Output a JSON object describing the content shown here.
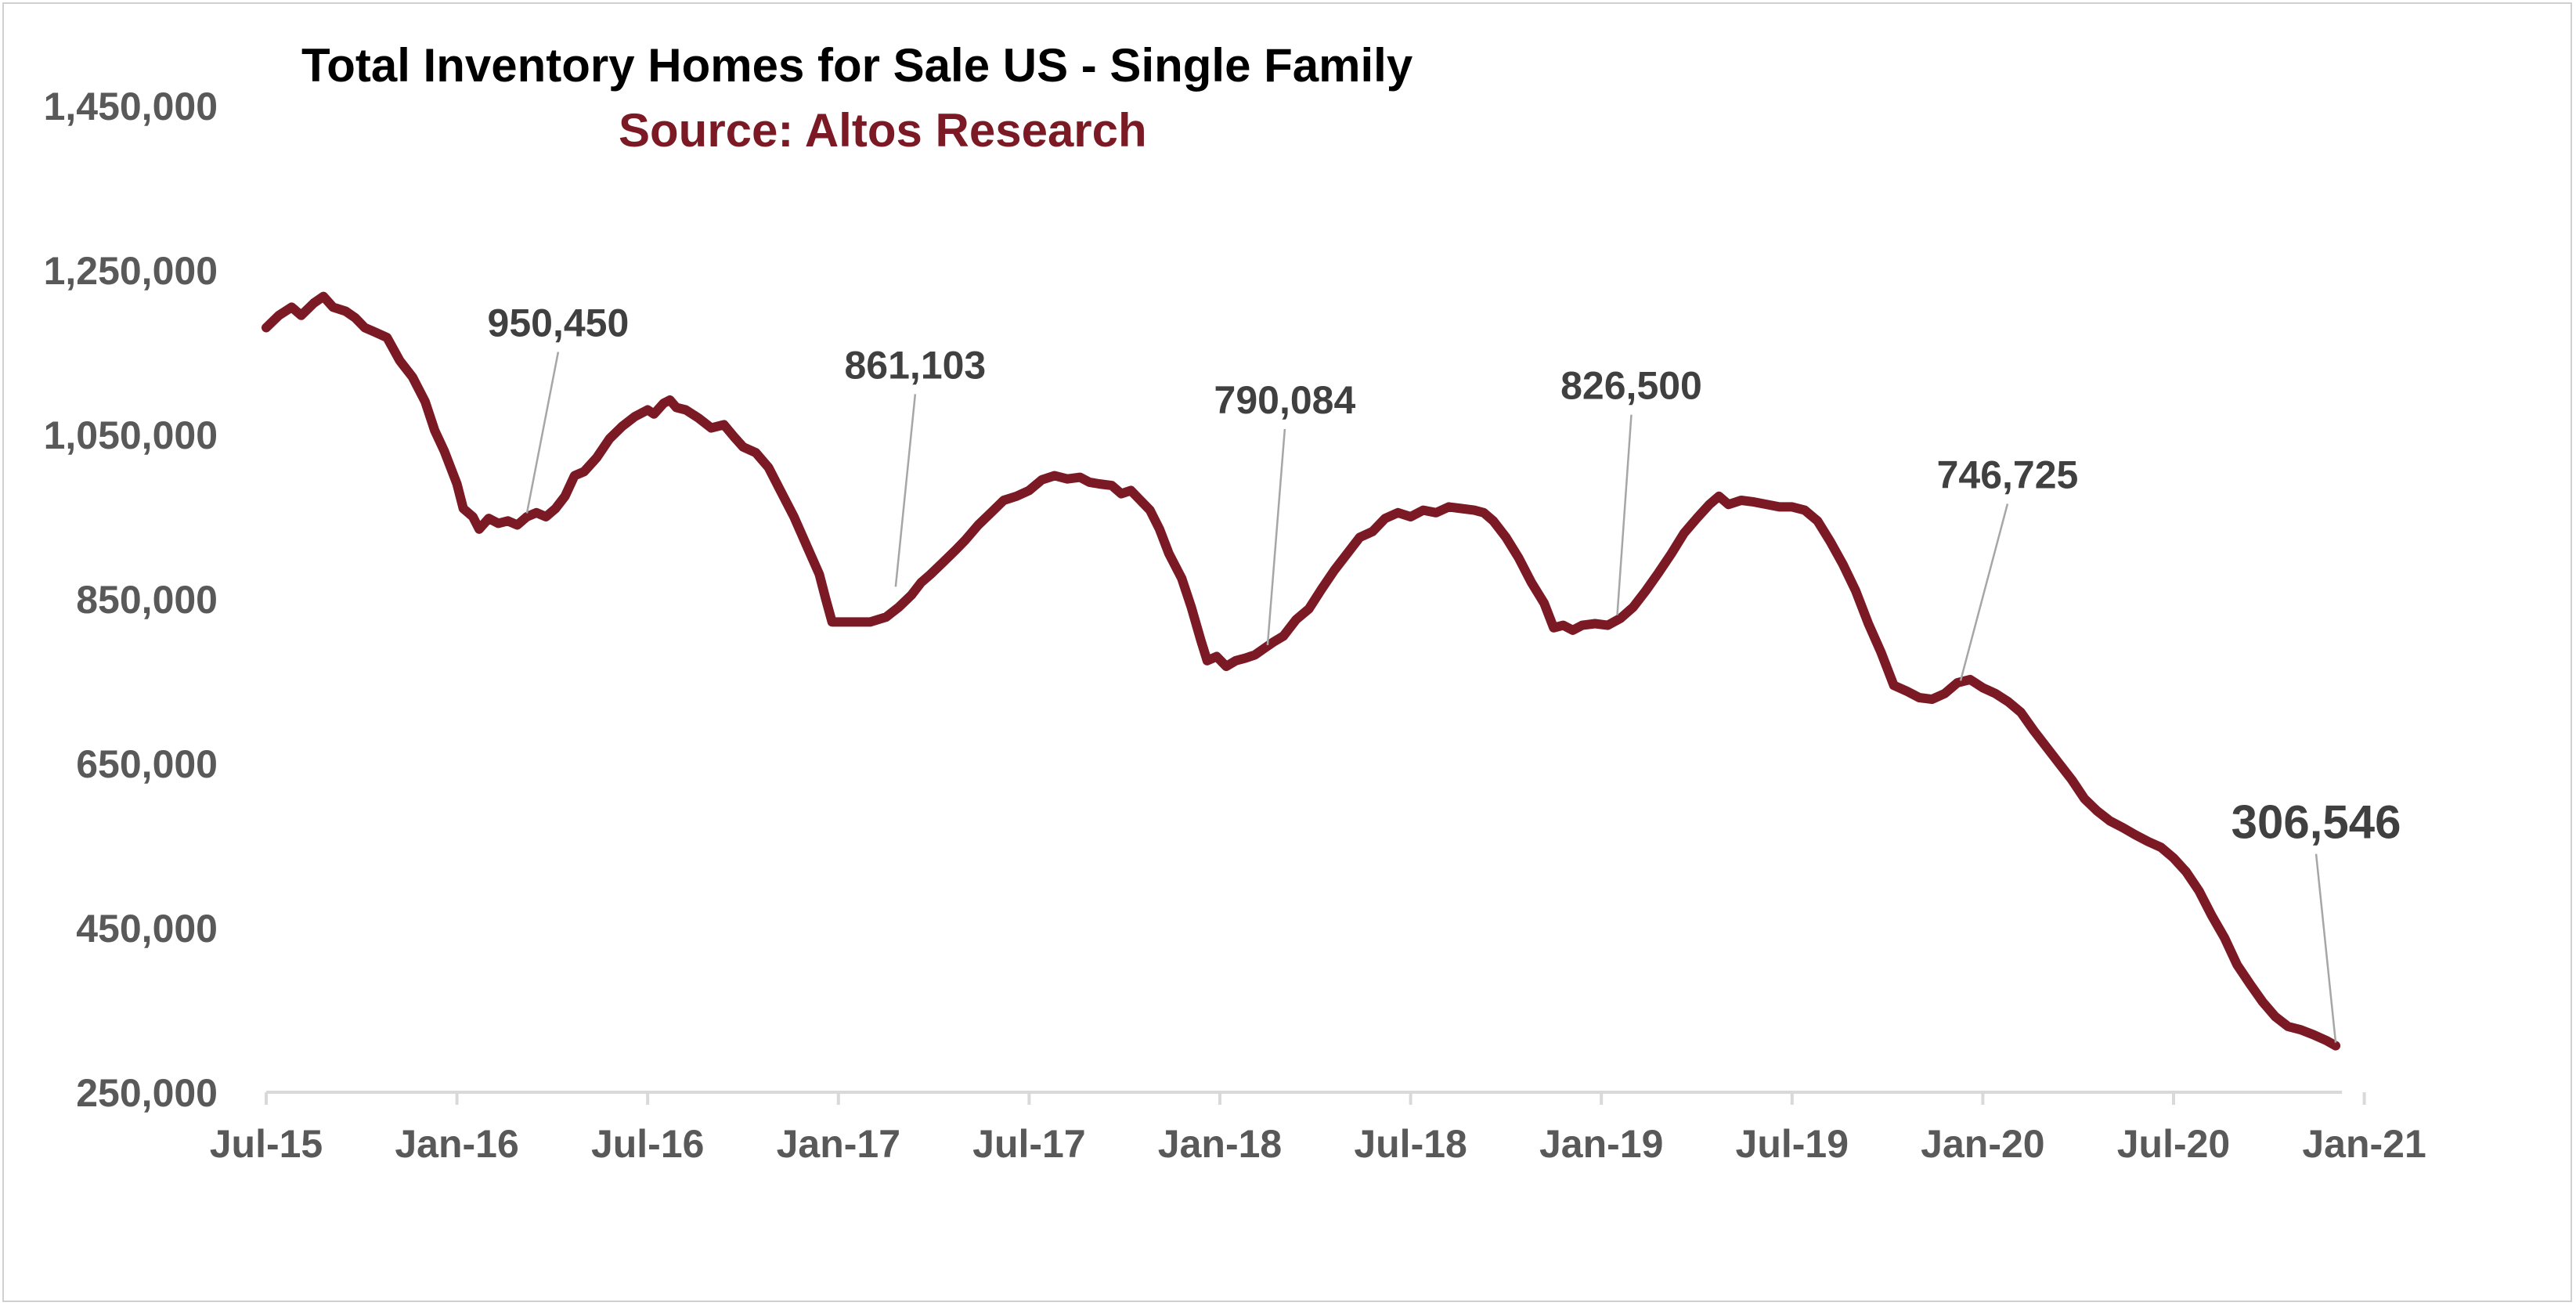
{
  "chart_data": {
    "type": "line",
    "title": "Total Inventory Homes for Sale US - Single Family",
    "subtitle": "Source: Altos Research",
    "xlabel": "",
    "ylabel": "",
    "ylim": [
      250000,
      1450000
    ],
    "yticks": [
      250000,
      450000,
      650000,
      850000,
      1050000,
      1250000,
      1450000
    ],
    "ytick_labels": [
      "250,000",
      "450,000",
      "650,000",
      "850,000",
      "1,050,000",
      "1,250,000",
      "1,450,000"
    ],
    "xticks": [
      "Jul-15",
      "Jan-16",
      "Jul-16",
      "Jan-17",
      "Jul-17",
      "Jan-18",
      "Jul-18",
      "Jan-19",
      "Jul-19",
      "Jan-20",
      "Jul-20",
      "Jan-21"
    ],
    "x_unit": "months since Jul-15",
    "grid": false,
    "series": [
      {
        "name": "Total Inventory",
        "color": "#7b1a24",
        "points": [
          [
            0,
            1180000
          ],
          [
            0.4,
            1195000
          ],
          [
            0.8,
            1205000
          ],
          [
            1.1,
            1195000
          ],
          [
            1.5,
            1210000
          ],
          [
            1.8,
            1218000
          ],
          [
            2.1,
            1205000
          ],
          [
            2.5,
            1200000
          ],
          [
            2.8,
            1192000
          ],
          [
            3.1,
            1180000
          ],
          [
            3.4,
            1175000
          ],
          [
            3.8,
            1168000
          ],
          [
            4.2,
            1140000
          ],
          [
            4.6,
            1120000
          ],
          [
            5.0,
            1090000
          ],
          [
            5.3,
            1055000
          ],
          [
            5.6,
            1030000
          ],
          [
            6.0,
            990000
          ],
          [
            6.2,
            960000
          ],
          [
            6.5,
            950000
          ],
          [
            6.7,
            935000
          ],
          [
            7.0,
            948000
          ],
          [
            7.3,
            942000
          ],
          [
            7.6,
            945000
          ],
          [
            7.9,
            940000
          ],
          [
            8.2,
            950000
          ],
          [
            8.5,
            955000
          ],
          [
            8.8,
            950000
          ],
          [
            9.1,
            960000
          ],
          [
            9.4,
            975000
          ],
          [
            9.7,
            1000000
          ],
          [
            10.0,
            1005000
          ],
          [
            10.4,
            1022000
          ],
          [
            10.8,
            1045000
          ],
          [
            11.2,
            1060000
          ],
          [
            11.6,
            1072000
          ],
          [
            12.0,
            1080000
          ],
          [
            12.2,
            1075000
          ],
          [
            12.5,
            1088000
          ],
          [
            12.7,
            1092000
          ],
          [
            12.9,
            1083000
          ],
          [
            13.2,
            1080000
          ],
          [
            13.6,
            1070000
          ],
          [
            14.0,
            1058000
          ],
          [
            14.4,
            1062000
          ],
          [
            14.7,
            1048000
          ],
          [
            15.0,
            1035000
          ],
          [
            15.4,
            1028000
          ],
          [
            15.8,
            1010000
          ],
          [
            16.2,
            980000
          ],
          [
            16.6,
            950000
          ],
          [
            17.0,
            915000
          ],
          [
            17.4,
            880000
          ],
          [
            17.6,
            850000
          ],
          [
            17.8,
            822000
          ],
          [
            18.1,
            822000
          ],
          [
            18.5,
            822000
          ],
          [
            19.0,
            822000
          ],
          [
            19.5,
            828000
          ],
          [
            19.9,
            840000
          ],
          [
            20.3,
            855000
          ],
          [
            20.6,
            870000
          ],
          [
            20.9,
            880000
          ],
          [
            21.3,
            895000
          ],
          [
            21.7,
            910000
          ],
          [
            22.0,
            922000
          ],
          [
            22.4,
            940000
          ],
          [
            22.8,
            955000
          ],
          [
            23.2,
            970000
          ],
          [
            23.6,
            975000
          ],
          [
            24.0,
            982000
          ],
          [
            24.4,
            995000
          ],
          [
            24.8,
            1000000
          ],
          [
            25.2,
            996000
          ],
          [
            25.6,
            998000
          ],
          [
            25.9,
            992000
          ],
          [
            26.2,
            990000
          ],
          [
            26.6,
            988000
          ],
          [
            26.9,
            978000
          ],
          [
            27.2,
            982000
          ],
          [
            27.5,
            970000
          ],
          [
            27.8,
            958000
          ],
          [
            28.1,
            935000
          ],
          [
            28.4,
            905000
          ],
          [
            28.8,
            875000
          ],
          [
            29.1,
            840000
          ],
          [
            29.4,
            800000
          ],
          [
            29.6,
            775000
          ],
          [
            29.9,
            780000
          ],
          [
            30.2,
            768000
          ],
          [
            30.5,
            775000
          ],
          [
            30.8,
            778000
          ],
          [
            31.1,
            782000
          ],
          [
            31.4,
            790000
          ],
          [
            31.7,
            798000
          ],
          [
            32.0,
            805000
          ],
          [
            32.4,
            825000
          ],
          [
            32.8,
            838000
          ],
          [
            33.2,
            862000
          ],
          [
            33.6,
            885000
          ],
          [
            34.0,
            905000
          ],
          [
            34.4,
            925000
          ],
          [
            34.8,
            932000
          ],
          [
            35.2,
            948000
          ],
          [
            35.6,
            955000
          ],
          [
            36.0,
            950000
          ],
          [
            36.4,
            958000
          ],
          [
            36.8,
            955000
          ],
          [
            37.2,
            962000
          ],
          [
            37.6,
            960000
          ],
          [
            38.0,
            958000
          ],
          [
            38.3,
            955000
          ],
          [
            38.6,
            945000
          ],
          [
            39.0,
            925000
          ],
          [
            39.4,
            900000
          ],
          [
            39.8,
            870000
          ],
          [
            40.2,
            845000
          ],
          [
            40.5,
            815000
          ],
          [
            40.8,
            818000
          ],
          [
            41.1,
            812000
          ],
          [
            41.4,
            818000
          ],
          [
            41.8,
            820000
          ],
          [
            42.2,
            818000
          ],
          [
            42.6,
            826500
          ],
          [
            43.0,
            840000
          ],
          [
            43.4,
            860000
          ],
          [
            43.8,
            882000
          ],
          [
            44.2,
            905000
          ],
          [
            44.6,
            930000
          ],
          [
            45.0,
            948000
          ],
          [
            45.4,
            965000
          ],
          [
            45.7,
            975000
          ],
          [
            46.0,
            965000
          ],
          [
            46.4,
            970000
          ],
          [
            46.8,
            968000
          ],
          [
            47.2,
            965000
          ],
          [
            47.6,
            962000
          ],
          [
            48.0,
            962000
          ],
          [
            48.4,
            958000
          ],
          [
            48.8,
            945000
          ],
          [
            49.2,
            920000
          ],
          [
            49.6,
            892000
          ],
          [
            50.0,
            860000
          ],
          [
            50.4,
            820000
          ],
          [
            50.8,
            785000
          ],
          [
            51.2,
            745000
          ],
          [
            51.6,
            738000
          ],
          [
            52.0,
            730000
          ],
          [
            52.4,
            728000
          ],
          [
            52.8,
            735000
          ],
          [
            53.2,
            748000
          ],
          [
            53.6,
            752000
          ],
          [
            54.0,
            742000
          ],
          [
            54.4,
            735000
          ],
          [
            54.8,
            725000
          ],
          [
            55.2,
            712000
          ],
          [
            55.6,
            690000
          ],
          [
            56.0,
            670000
          ],
          [
            56.4,
            650000
          ],
          [
            56.8,
            630000
          ],
          [
            57.2,
            607000
          ],
          [
            57.6,
            592000
          ],
          [
            58.0,
            580000
          ],
          [
            58.4,
            572000
          ],
          [
            58.8,
            563000
          ],
          [
            59.2,
            555000
          ],
          [
            59.6,
            548000
          ],
          [
            60.0,
            535000
          ],
          [
            60.4,
            518000
          ],
          [
            60.8,
            495000
          ],
          [
            61.2,
            465000
          ],
          [
            61.6,
            438000
          ],
          [
            62.0,
            405000
          ],
          [
            62.4,
            382000
          ],
          [
            62.8,
            360000
          ],
          [
            63.2,
            342000
          ],
          [
            63.6,
            330000
          ],
          [
            64.0,
            326000
          ],
          [
            64.4,
            320000
          ],
          [
            64.8,
            313000
          ],
          [
            65.1,
            306546
          ]
        ]
      }
    ],
    "annotations": [
      {
        "label": "950,450",
        "x": 8.2,
        "y": 950450
      },
      {
        "label": "861,103",
        "x": 19.8,
        "y": 861103
      },
      {
        "label": "790,084",
        "x": 31.5,
        "y": 790084
      },
      {
        "label": "826,500",
        "x": 42.5,
        "y": 826500
      },
      {
        "label": "746,725",
        "x": 53.3,
        "y": 746725
      },
      {
        "label": "306,546",
        "x": 65.1,
        "y": 306546
      }
    ]
  }
}
